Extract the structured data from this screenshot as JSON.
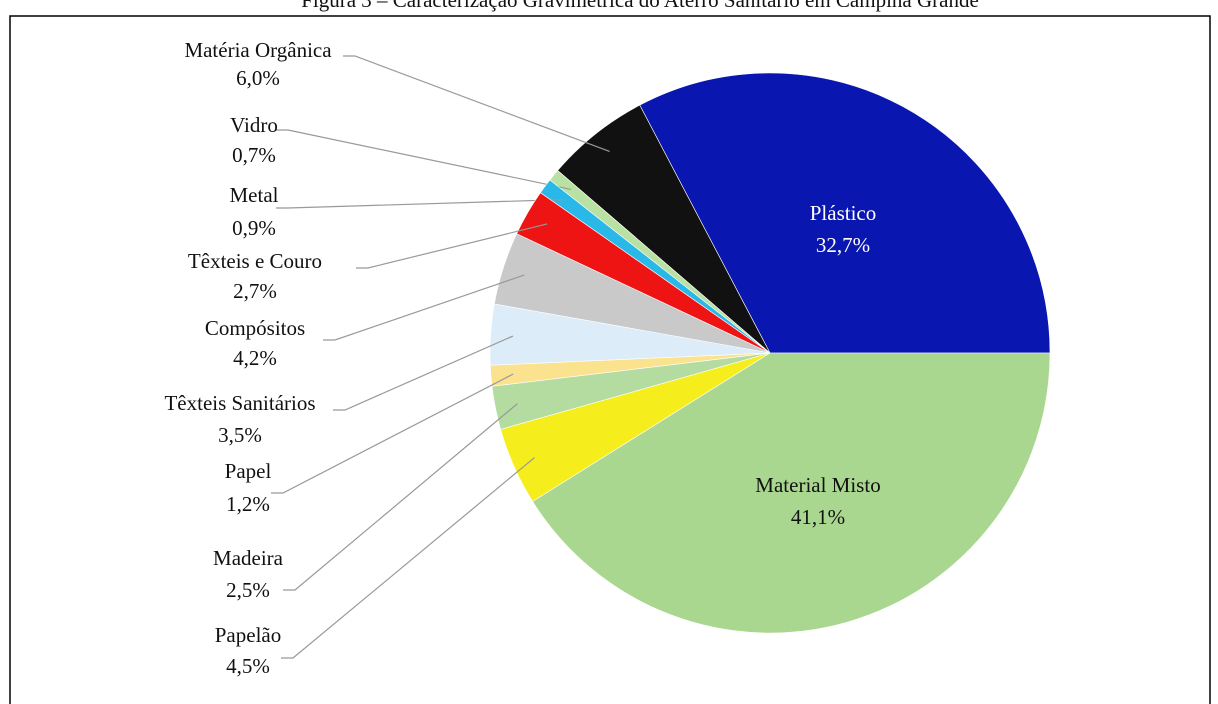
{
  "chart_data": {
    "type": "pie",
    "title": "Figura 3 – Caracterização Gravimétrica do Aterro Sanitário em Campina Grande",
    "categories": [
      "Plástico",
      "Matéria Orgânica",
      "Vidro",
      "Metal",
      "Têxteis e Couro",
      "Compósitos",
      "Têxteis Sanitários",
      "Papel",
      "Madeira",
      "Papelão",
      "Material Misto"
    ],
    "values": [
      32.7,
      6.0,
      0.7,
      0.9,
      2.7,
      4.2,
      3.5,
      1.2,
      2.5,
      4.5,
      41.1
    ],
    "value_labels": [
      "32,7%",
      "6,0%",
      "0,7%",
      "0,9%",
      "2,7%",
      "4,2%",
      "3,5%",
      "1,2%",
      "2,5%",
      "4,5%",
      "41,1%"
    ],
    "colors": [
      "#0a16b0",
      "#111111",
      "#b9e2a2",
      "#2ab8e8",
      "#ee1414",
      "#c9c9c9",
      "#dcecf8",
      "#fbe28e",
      "#b4dca0",
      "#f6ee1c",
      "#a9d78f"
    ]
  }
}
